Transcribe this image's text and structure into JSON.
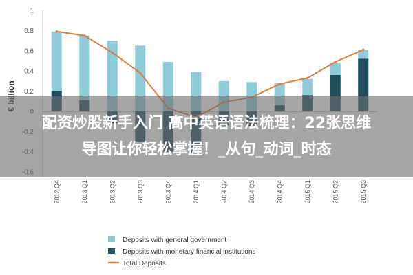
{
  "chart_data": {
    "type": "bar",
    "ylabel": "€ billion",
    "ylim": [
      -0.6,
      1.0
    ],
    "yticks": [
      1,
      0.8,
      0.6,
      0.4,
      0.2,
      0,
      -0.2,
      -0.4,
      -0.6
    ],
    "ytick_labels": [
      "1",
      "0.8",
      "0.6",
      "0.4",
      "0.2",
      "0",
      "-0.2",
      "-0.4",
      "-0.6"
    ],
    "categories": [
      "2012 Q4",
      "2013 Q1",
      "2013 Q2",
      "2013 Q3",
      "2013 Q4",
      "2014 Q1",
      "2014 Q2",
      "2014 Q3",
      "2014 Q4",
      "2015 Q1",
      "2015 Q2",
      "2015 Q3"
    ],
    "series": [
      {
        "name": "Deposits with general government",
        "kind": "bar",
        "color": "#8fcbd9",
        "values": [
          0.79,
          0.75,
          0.7,
          0.65,
          0.49,
          0.39,
          0.3,
          0.29,
          0.28,
          0.32,
          0.48,
          0.61
        ]
      },
      {
        "name": "Deposits with monetary financial institutions",
        "kind": "bar",
        "color": "#1f4e5f",
        "values": [
          0.2,
          0.11,
          -0.12,
          -0.3,
          -0.4,
          -0.42,
          -0.14,
          -0.15,
          0.06,
          0.16,
          0.36,
          0.52
        ]
      },
      {
        "name": "Total Deposits",
        "kind": "line",
        "color": "#e07b39",
        "values": [
          0.79,
          0.75,
          0.58,
          0.38,
          0.03,
          -0.06,
          0.09,
          0.14,
          0.27,
          0.33,
          0.49,
          0.61
        ]
      }
    ],
    "legend_position": "bottom-left",
    "grid": false
  },
  "banner": {
    "line1": "配资炒股新手入门 高中英语语法梳理：22张思维",
    "line2": "导图让你轻松掌握！_从句_动词_时态"
  }
}
